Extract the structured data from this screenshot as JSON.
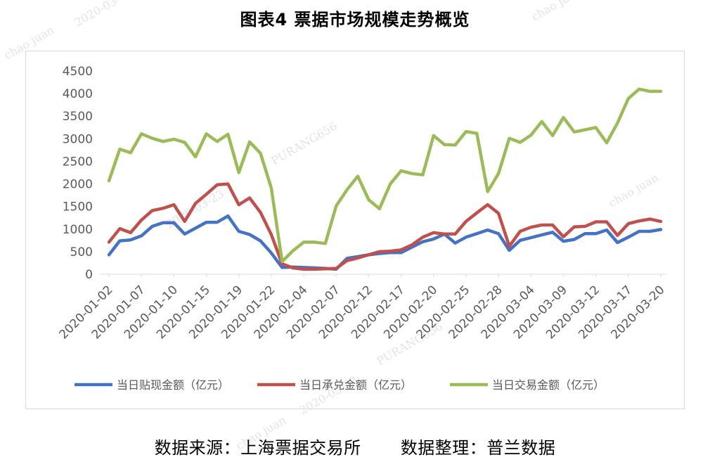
{
  "title": "图表4  票据市场规模走势概览",
  "footer": {
    "source": "数据来源：上海票据交易所",
    "compiler": "数据整理：普兰数据"
  },
  "watermarks": [
    "chao juan",
    "2020-03-",
    "chao juan",
    "PURANG656",
    "2020-03-23",
    "chao juan",
    "2020-03-23",
    "PURANG656",
    "chao juan"
  ],
  "colors": {
    "discount": "#4472C4",
    "acceptance": "#C0504D",
    "trading": "#9BBB59"
  },
  "chart_data": {
    "type": "line",
    "title": "图表4  票据市场规模走势概览",
    "xlabel": "",
    "ylabel": "",
    "ylim": [
      0,
      4500
    ],
    "yticks": [
      0,
      500,
      1000,
      1500,
      2000,
      2500,
      3000,
      3500,
      4000,
      4500
    ],
    "grid": false,
    "legend_position": "bottom",
    "x_tick_labels": [
      "2020-01-02",
      "2020-01-07",
      "2020-01-10",
      "2020-01-15",
      "2020-01-19",
      "2020-01-22",
      "2020-02-04",
      "2020-02-07",
      "2020-02-12",
      "2020-02-17",
      "2020-02-20",
      "2020-02-25",
      "2020-02-28",
      "2020-03-04",
      "2020-03-09",
      "2020-03-12",
      "2020-03-17",
      "2020-03-20"
    ],
    "x": [
      "2020-01-02",
      "2020-01-03",
      "2020-01-06",
      "2020-01-07",
      "2020-01-08",
      "2020-01-09",
      "2020-01-10",
      "2020-01-13",
      "2020-01-14",
      "2020-01-15",
      "2020-01-16",
      "2020-01-17",
      "2020-01-19",
      "2020-01-20",
      "2020-01-21",
      "2020-01-22",
      "2020-01-23",
      "2020-02-03",
      "2020-02-04",
      "2020-02-05",
      "2020-02-06",
      "2020-02-07",
      "2020-02-10",
      "2020-02-11",
      "2020-02-12",
      "2020-02-13",
      "2020-02-14",
      "2020-02-17",
      "2020-02-18",
      "2020-02-19",
      "2020-02-20",
      "2020-02-21",
      "2020-02-24",
      "2020-02-25",
      "2020-02-26",
      "2020-02-27",
      "2020-02-28",
      "2020-03-02",
      "2020-03-03",
      "2020-03-04",
      "2020-03-05",
      "2020-03-06",
      "2020-03-09",
      "2020-03-10",
      "2020-03-11",
      "2020-03-12",
      "2020-03-13",
      "2020-03-16",
      "2020-03-17",
      "2020-03-18",
      "2020-03-19",
      "2020-03-20"
    ],
    "series": [
      {
        "name": "当日贴现金额（亿元）",
        "values": [
          430,
          740,
          760,
          850,
          1060,
          1140,
          1140,
          890,
          1020,
          1150,
          1150,
          1290,
          950,
          880,
          740,
          470,
          150,
          160,
          150,
          140,
          130,
          110,
          350,
          390,
          430,
          460,
          480,
          480,
          600,
          720,
          780,
          890,
          690,
          820,
          900,
          980,
          900,
          530,
          750,
          810,
          870,
          930,
          730,
          770,
          900,
          900,
          980,
          700,
          820,
          950,
          950,
          990
        ]
      },
      {
        "name": "当日承兑金额（亿元）",
        "values": [
          710,
          1010,
          920,
          1200,
          1410,
          1460,
          1540,
          1170,
          1570,
          1770,
          1980,
          2000,
          1540,
          1690,
          1370,
          880,
          230,
          140,
          110,
          110,
          120,
          130,
          300,
          360,
          430,
          500,
          510,
          540,
          650,
          820,
          920,
          890,
          890,
          1170,
          1360,
          1540,
          1350,
          620,
          950,
          1040,
          1090,
          1090,
          830,
          1050,
          1060,
          1160,
          1160,
          860,
          1120,
          1180,
          1220,
          1170
        ]
      },
      {
        "name": "当日交易金额（亿元）",
        "values": [
          2070,
          2770,
          2690,
          3110,
          3010,
          2940,
          2990,
          2920,
          2600,
          3110,
          2940,
          3100,
          2250,
          2930,
          2680,
          1910,
          280,
          520,
          710,
          710,
          680,
          1510,
          1870,
          2170,
          1650,
          1450,
          2000,
          2290,
          2230,
          2200,
          3070,
          2870,
          2860,
          3160,
          3120,
          1830,
          2230,
          3010,
          2920,
          3080,
          3380,
          3070,
          3470,
          3150,
          3200,
          3250,
          2910,
          3350,
          3890,
          4100,
          4050,
          4050
        ]
      }
    ]
  }
}
